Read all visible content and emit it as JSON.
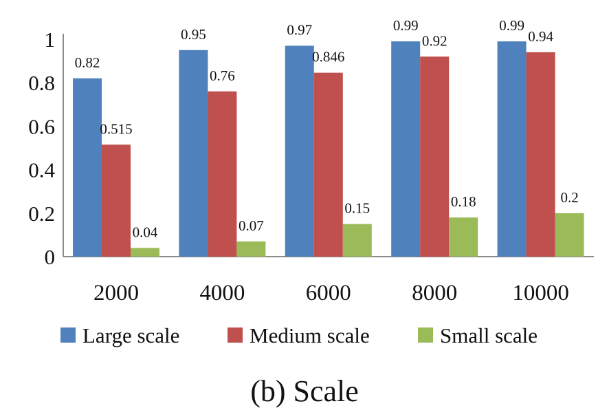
{
  "chart_data": {
    "type": "bar",
    "caption": "(b) Scale",
    "categories": [
      "2000",
      "4000",
      "6000",
      "8000",
      "10000"
    ],
    "series": [
      {
        "name": "Large scale",
        "color": "#4F81BD",
        "values": [
          0.82,
          0.95,
          0.97,
          0.99,
          0.99
        ],
        "labels": [
          "0.82",
          "0.95",
          "0.97",
          "0.99",
          "0.99"
        ]
      },
      {
        "name": "Medium scale",
        "color": "#C0504D",
        "values": [
          0.515,
          0.76,
          0.846,
          0.92,
          0.94
        ],
        "labels": [
          "0.515",
          "0.76",
          "0.846",
          "0.92",
          "0.94"
        ]
      },
      {
        "name": "Small scale",
        "color": "#9BBB59",
        "values": [
          0.04,
          0.07,
          0.15,
          0.18,
          0.2
        ],
        "labels": [
          "0.04",
          "0.07",
          "0.15",
          "0.18",
          "0.2"
        ]
      }
    ],
    "yticks": [
      "0",
      "0.2",
      "0.4",
      "0.6",
      "0.8",
      "1"
    ],
    "ylim": [
      0,
      1
    ],
    "grid": false,
    "legend_position": "bottom",
    "xlabel": "",
    "ylabel": ""
  }
}
